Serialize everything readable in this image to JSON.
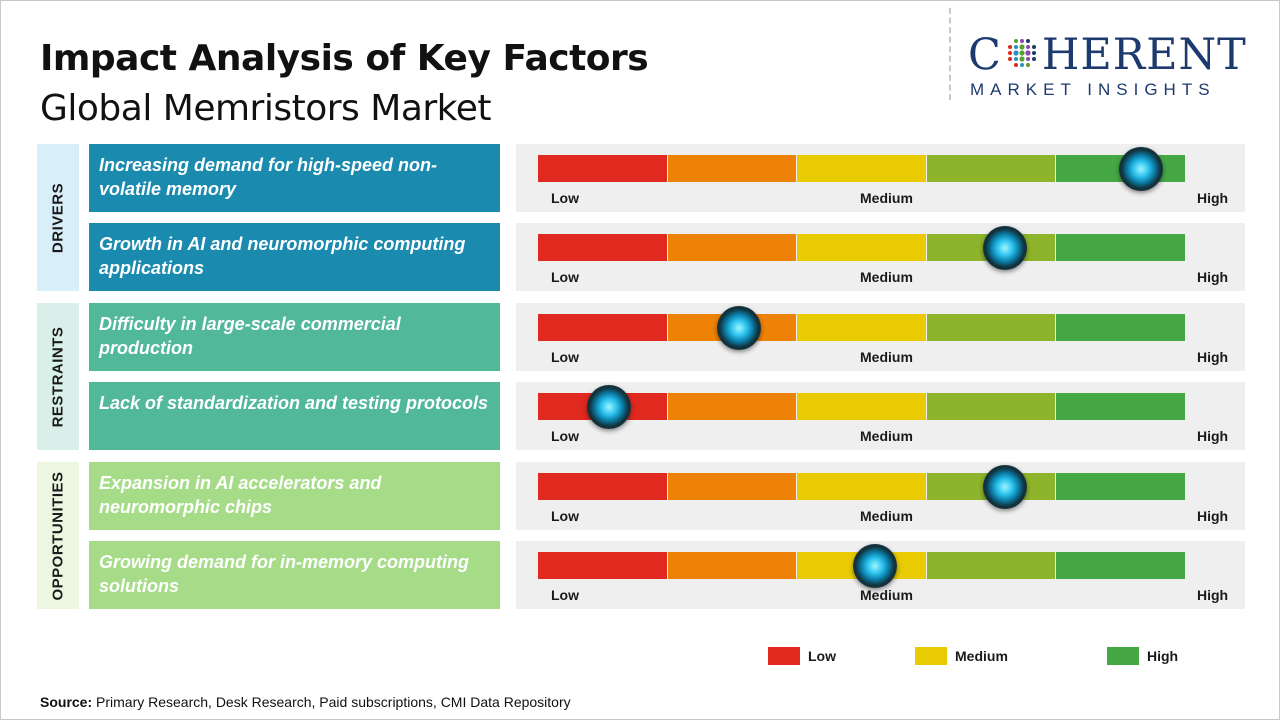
{
  "title": "Impact Analysis of Key Factors",
  "subtitle": "Global Memristors Market",
  "logo": {
    "brand_left": "C",
    "brand_right": "HERENT",
    "tagline": "MARKET INSIGHTS",
    "color": "#1c3a6e"
  },
  "scale_labels": {
    "low": "Low",
    "medium": "Medium",
    "high": "High"
  },
  "scale_colors": [
    "#e0291f",
    "#ee8206",
    "#e8cb02",
    "#8db42a",
    "#45a845"
  ],
  "chart_data": {
    "type": "gauge",
    "title": "Impact Analysis of Key Factors",
    "subtitle": "Global Memristors Market",
    "scale": {
      "min": 0,
      "max": 1,
      "labels": [
        "Low",
        "Medium",
        "High"
      ]
    },
    "categories": [
      {
        "name": "DRIVERS",
        "color": "#d8eef8",
        "factors": [
          {
            "label": "Increasing demand for high-speed non-volatile memory",
            "impact": 0.93,
            "color": "#1a8aaf"
          },
          {
            "label": "Growth in AI and neuromorphic computing applications",
            "impact": 0.72,
            "color": "#1a8aaf"
          }
        ]
      },
      {
        "name": "RESTRAINTS",
        "color": "#d9f0ea",
        "factors": [
          {
            "label": "Difficulty in large-scale commercial production",
            "impact": 0.31,
            "color": "#52b89a"
          },
          {
            "label": "Lack of standardization and testing protocols",
            "impact": 0.11,
            "color": "#52b89a"
          }
        ]
      },
      {
        "name": "OPPORTUNITIES",
        "color": "#ecf7e1",
        "factors": [
          {
            "label": "Expansion in AI accelerators and neuromorphic chips",
            "impact": 0.72,
            "color": "#a6dc88"
          },
          {
            "label": "Growing demand for in-memory computing solutions",
            "impact": 0.52,
            "color": "#a6dc88"
          }
        ]
      }
    ],
    "legend": [
      {
        "label": "Low",
        "color": "#e0291f"
      },
      {
        "label": "Medium",
        "color": "#e8cb02"
      },
      {
        "label": "High",
        "color": "#45a845"
      }
    ]
  },
  "source": {
    "label": "Source:",
    "text": " Primary Research, Desk Research, Paid subscriptions, CMI Data Repository"
  }
}
